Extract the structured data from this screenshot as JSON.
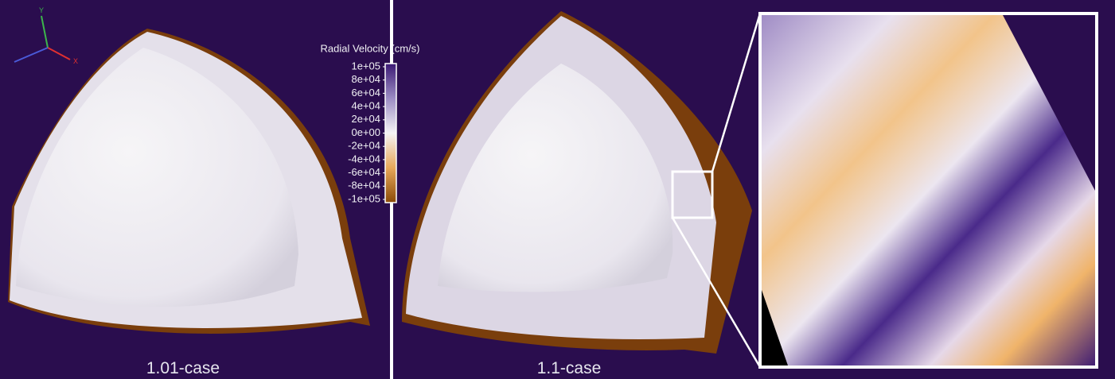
{
  "colorbar": {
    "title": "Radial Velocity (cm/s)",
    "lim": [
      -100000,
      100000
    ],
    "ticks": [
      {
        "value": 100000,
        "label": "1e+05"
      },
      {
        "value": 80000,
        "label": "8e+04"
      },
      {
        "value": 60000,
        "label": "6e+04"
      },
      {
        "value": 40000,
        "label": "4e+04"
      },
      {
        "value": 20000,
        "label": "2e+04"
      },
      {
        "value": 0,
        "label": "0e+00"
      },
      {
        "value": -20000,
        "label": "-2e+04"
      },
      {
        "value": -40000,
        "label": "-4e+04"
      },
      {
        "value": -60000,
        "label": "-6e+04"
      },
      {
        "value": -80000,
        "label": "-8e+04"
      },
      {
        "value": -100000,
        "label": "-1e+05"
      }
    ]
  },
  "axes_triad": {
    "y": "Y",
    "x": "X"
  },
  "panels": [
    {
      "caption": "1.01-case"
    },
    {
      "caption": "1.1-case"
    }
  ]
}
